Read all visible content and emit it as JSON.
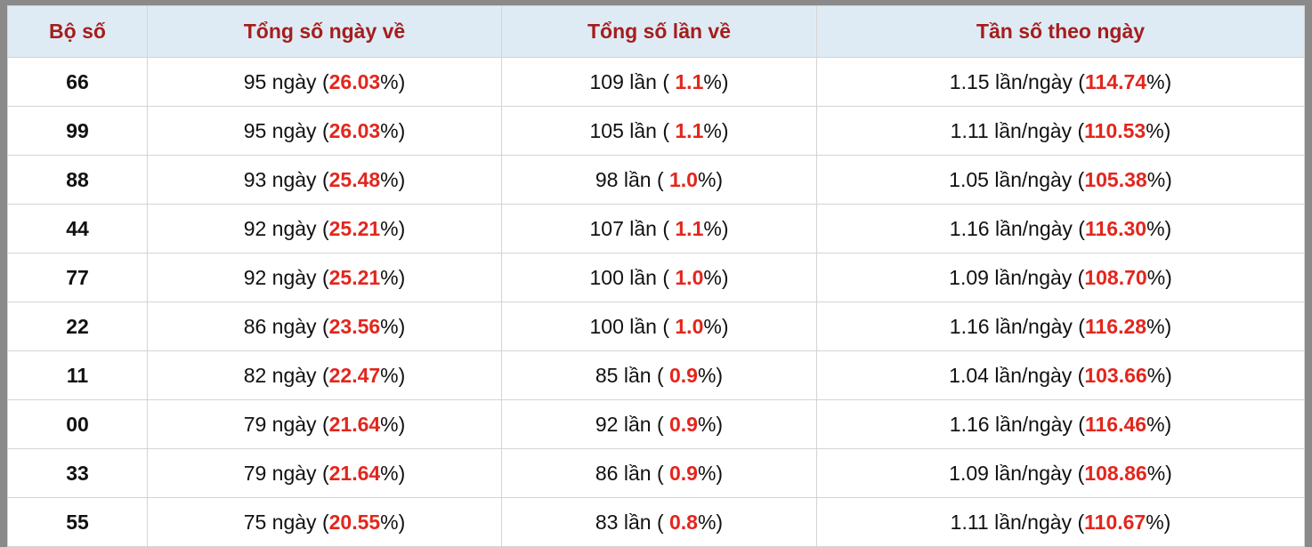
{
  "table": {
    "header": [
      "Bộ số",
      "Tổng số ngày về",
      "Tổng số lần về",
      "Tần số theo ngày"
    ],
    "rows": [
      [
        "66",
        [
          "95 ngày (",
          "26.03",
          "%)"
        ],
        [
          "109 lần ( ",
          "1.1",
          "%)"
        ],
        [
          "1.15 lần/ngày (",
          "114.74",
          "%)"
        ]
      ],
      [
        "99",
        [
          "95 ngày (",
          "26.03",
          "%)"
        ],
        [
          "105 lần ( ",
          "1.1",
          "%)"
        ],
        [
          "1.11 lần/ngày (",
          "110.53",
          "%)"
        ]
      ],
      [
        "88",
        [
          "93 ngày (",
          "25.48",
          "%)"
        ],
        [
          "98 lần ( ",
          "1.0",
          "%)"
        ],
        [
          "1.05 lần/ngày (",
          "105.38",
          "%)"
        ]
      ],
      [
        "44",
        [
          "92 ngày (",
          "25.21",
          "%)"
        ],
        [
          "107 lần ( ",
          "1.1",
          "%)"
        ],
        [
          "1.16 lần/ngày (",
          "116.30",
          "%)"
        ]
      ],
      [
        "77",
        [
          "92 ngày (",
          "25.21",
          "%)"
        ],
        [
          "100 lần ( ",
          "1.0",
          "%)"
        ],
        [
          "1.09 lần/ngày (",
          "108.70",
          "%)"
        ]
      ],
      [
        "22",
        [
          "86 ngày (",
          "23.56",
          "%)"
        ],
        [
          "100 lần ( ",
          "1.0",
          "%)"
        ],
        [
          "1.16 lần/ngày (",
          "116.28",
          "%)"
        ]
      ],
      [
        "11",
        [
          "82 ngày (",
          "22.47",
          "%)"
        ],
        [
          "85 lần ( ",
          "0.9",
          "%)"
        ],
        [
          "1.04 lần/ngày (",
          "103.66",
          "%)"
        ]
      ],
      [
        "00",
        [
          "79 ngày (",
          "21.64",
          "%)"
        ],
        [
          "92 lần ( ",
          "0.9",
          "%)"
        ],
        [
          "1.16 lần/ngày (",
          "116.46",
          "%)"
        ]
      ],
      [
        "33",
        [
          "79 ngày (",
          "21.64",
          "%)"
        ],
        [
          "86 lần ( ",
          "0.9",
          "%)"
        ],
        [
          "1.09 lần/ngày (",
          "108.86",
          "%)"
        ]
      ],
      [
        "55",
        [
          "75 ngày (",
          "20.55",
          "%)"
        ],
        [
          "83 lần ( ",
          "0.8",
          "%)"
        ],
        [
          "1.11 lần/ngày (",
          "110.67",
          "%)"
        ]
      ]
    ]
  }
}
